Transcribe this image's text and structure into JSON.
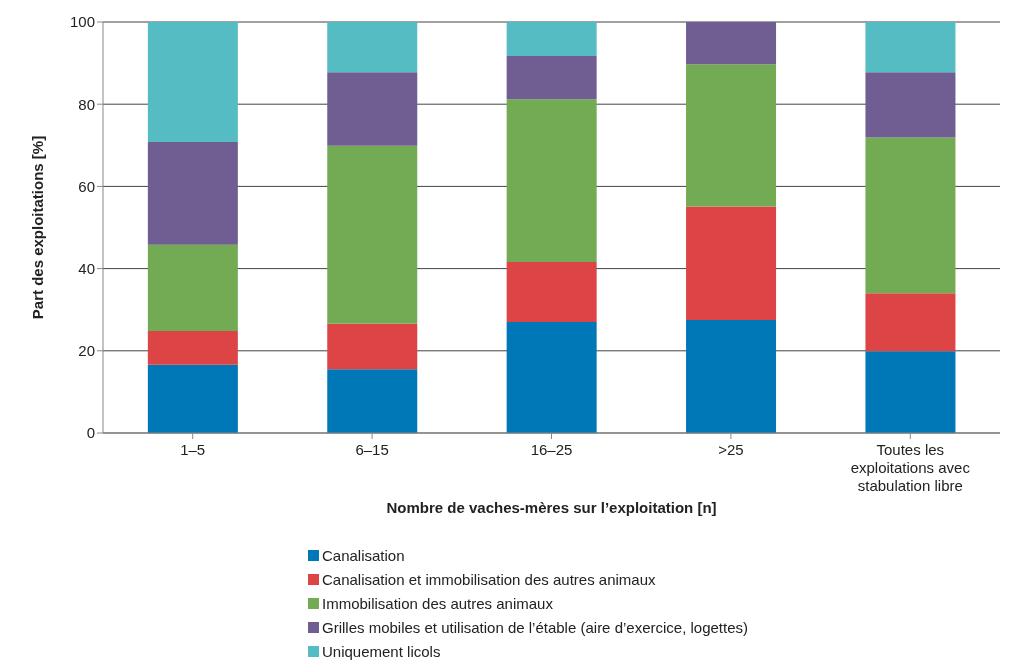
{
  "chart_data": {
    "type": "bar",
    "stacked": true,
    "xlabel": "Nombre de vaches-mères sur l’exploitation [n]",
    "ylabel": "Part des exploitations [%]",
    "categories": [
      "1–5",
      "6–15",
      "16–25",
      ">25",
      "Toutes les exploitations avec stabulation libre"
    ],
    "series": [
      {
        "name": "Canalisation",
        "color": "#0077b6",
        "values": [
          16.6,
          15.5,
          27.0,
          27.5,
          19.9
        ]
      },
      {
        "name": "Canalisation et immobilisation des autres animaux",
        "color": "#dc4446",
        "values": [
          8.2,
          11.1,
          14.6,
          27.6,
          14.1
        ]
      },
      {
        "name": "Immobilisation des autres animaux",
        "color": "#72ab53",
        "values": [
          21.0,
          43.3,
          39.6,
          34.6,
          37.9
        ]
      },
      {
        "name": "Grilles mobiles et utilisation de l’étable (aire d’exercice, logettes)",
        "color": "#705d91",
        "values": [
          25.0,
          17.9,
          10.5,
          10.3,
          15.9
        ]
      },
      {
        "name": "Uniquement licols",
        "color": "#54bcc2",
        "values": [
          29.2,
          12.2,
          8.3,
          0,
          12.2
        ]
      }
    ],
    "ylim": [
      0,
      100
    ],
    "yticks": [
      0,
      20,
      40,
      60,
      80,
      100
    ],
    "grid": "y",
    "legend": "bottom"
  }
}
